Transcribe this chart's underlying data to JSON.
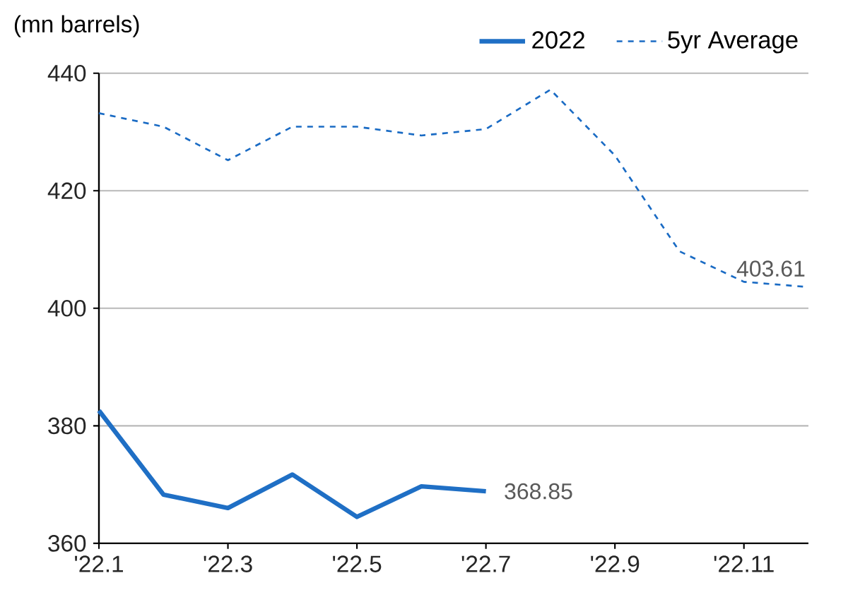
{
  "chart_data": {
    "type": "line",
    "ylabel": "(mn barrels)",
    "categories": [
      "'22.1",
      null,
      "'22.3",
      null,
      "'22.5",
      null,
      "'22.7",
      null,
      "'22.9",
      null,
      "'22.11",
      null
    ],
    "series": [
      {
        "name": "2022",
        "color": "#1f6fc5",
        "line_style": "solid",
        "values": [
          382.6,
          368.3,
          366.0,
          371.7,
          364.5,
          369.7,
          368.85,
          null,
          null,
          null,
          null,
          null
        ],
        "value_labels": [
          null,
          null,
          null,
          null,
          null,
          null,
          "368.85",
          null,
          null,
          null,
          null,
          null
        ]
      },
      {
        "name": "5yr Average",
        "color": "#1a6bc4",
        "line_style": "dashed",
        "values": [
          433.2,
          430.9,
          425.2,
          430.9,
          430.9,
          429.4,
          430.5,
          437.2,
          426.0,
          409.7,
          404.5,
          403.61
        ],
        "value_labels": [
          null,
          null,
          null,
          null,
          null,
          null,
          null,
          null,
          null,
          null,
          null,
          "403.61"
        ]
      }
    ],
    "ylim": [
      360,
      440
    ],
    "yticks": [
      360,
      380,
      400,
      420,
      440
    ],
    "grid": "y",
    "legend": "top right",
    "marker": "none"
  }
}
